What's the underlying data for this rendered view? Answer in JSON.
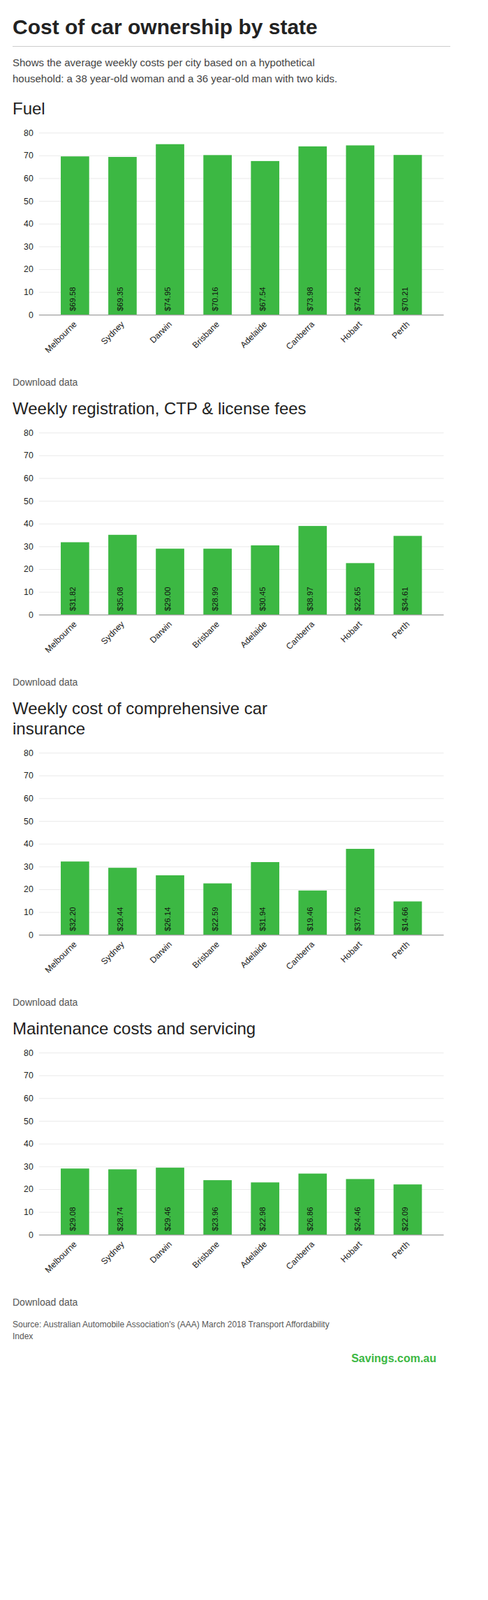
{
  "title": "Cost of car ownership by state",
  "subtitle": "Shows the average weekly costs per city based on a hypothetical\nhousehold: a 38 year-old woman and a 36 year-old man with two kids.",
  "annotations": [
    "Source: Australian Automobile Association's (AAA) March 2018 Transport Affordability\nIndex",
    "Savings.com.au"
  ],
  "chart_data": [
    {
      "type": "bar",
      "title": "Fuel",
      "categories": [
        "Melbourne",
        "Sydney",
        "Darwin",
        "Brisbane",
        "Adelaide",
        "Canberra",
        "Hobart",
        "Perth"
      ],
      "values": [
        69.58,
        69.35,
        74.95,
        70.16,
        67.54,
        73.98,
        74.42,
        70.21
      ],
      "value_labels": [
        "$69.58",
        "$69.35",
        "$74.95",
        "$70.16",
        "$67.54",
        "$73.98",
        "$74.42",
        "$70.21"
      ],
      "data_labels": true,
      "color": "#3cb843",
      "ylim": [
        0,
        80
      ],
      "yticks": [
        0,
        10,
        20,
        30,
        40,
        50,
        60,
        70,
        80
      ],
      "grid": true,
      "annotations": [
        "Download data"
      ]
    },
    {
      "type": "bar",
      "title": "Weekly registration, CTP & license fees",
      "categories": [
        "Melbourne",
        "Sydney",
        "Darwin",
        "Brisbane",
        "Adelaide",
        "Canberra",
        "Hobart",
        "Perth"
      ],
      "values": [
        31.82,
        35.08,
        29.0,
        28.99,
        30.45,
        38.97,
        22.65,
        34.61
      ],
      "value_labels": [
        "$31.82",
        "$35.08",
        "$29.00",
        "$28.99",
        "$30.45",
        "$38.97",
        "$22.65",
        "$34.61"
      ],
      "data_labels": true,
      "color": "#3cb843",
      "ylim": [
        0,
        80
      ],
      "yticks": [
        0,
        10,
        20,
        30,
        40,
        50,
        60,
        70,
        80
      ],
      "grid": true,
      "annotations": [
        "Download data"
      ]
    },
    {
      "type": "bar",
      "title": "Weekly cost of comprehensive car\ninsurance",
      "categories": [
        "Melbourne",
        "Sydney",
        "Darwin",
        "Brisbane",
        "Adelaide",
        "Canberra",
        "Hobart",
        "Perth"
      ],
      "values": [
        32.2,
        29.44,
        26.14,
        22.59,
        31.94,
        19.46,
        37.76,
        14.66
      ],
      "value_labels": [
        "$32.20",
        "$29.44",
        "$26.14",
        "$22.59",
        "$31.94",
        "$19.46",
        "$37.76",
        "$14.66"
      ],
      "data_labels": true,
      "color": "#3cb843",
      "ylim": [
        0,
        80
      ],
      "yticks": [
        0,
        10,
        20,
        30,
        40,
        50,
        60,
        70,
        80
      ],
      "grid": true,
      "annotations": [
        "Download data"
      ]
    },
    {
      "type": "bar",
      "title": "Maintenance costs and servicing",
      "categories": [
        "Melbourne",
        "Sydney",
        "Darwin",
        "Brisbane",
        "Adelaide",
        "Canberra",
        "Hobart",
        "Perth"
      ],
      "values": [
        29.08,
        28.74,
        29.46,
        23.96,
        22.98,
        26.86,
        24.46,
        22.09
      ],
      "value_labels": [
        "$29.08",
        "$28.74",
        "$29.46",
        "$23.96",
        "$22.98",
        "$26.86",
        "$24.46",
        "$22.09"
      ],
      "data_labels": true,
      "color": "#3cb843",
      "ylim": [
        0,
        80
      ],
      "yticks": [
        0,
        10,
        20,
        30,
        40,
        50,
        60,
        70,
        80
      ],
      "grid": true,
      "annotations": [
        "Download data"
      ]
    }
  ]
}
